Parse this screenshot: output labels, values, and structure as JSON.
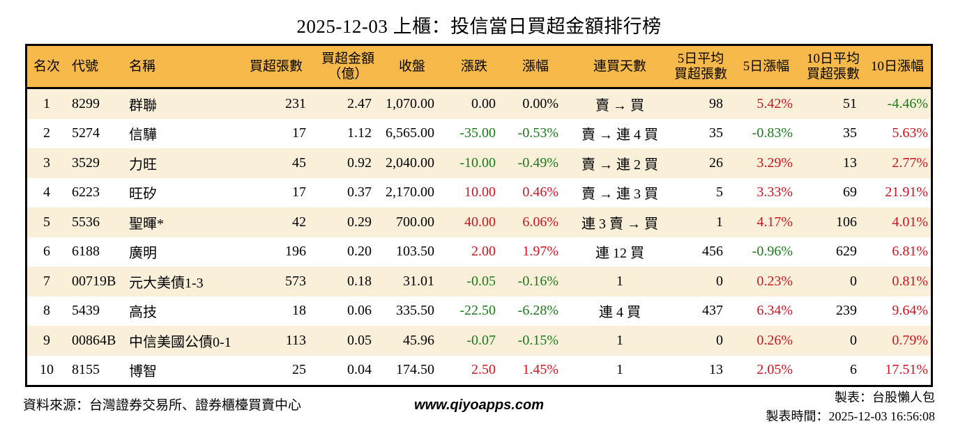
{
  "title": "2025-12-03 上櫃：投信當日買超金額排行榜",
  "colors": {
    "header_bg": "#f7ba4a",
    "stripe": "#faf0da",
    "border": "#000000",
    "up": "#d0121f",
    "down": "#1a7a1a",
    "flat": "#000000"
  },
  "table": {
    "headers": [
      "名次",
      "代號",
      "名稱",
      "買超張數",
      "買超金額\n（億）",
      "收盤",
      "漲跌",
      "漲幅",
      "連買天數",
      "5日平均\n買超張數",
      "5日漲幅",
      "10日平均\n買超張數",
      "10日漲幅"
    ],
    "rows": [
      [
        "1",
        "8299",
        "群聯",
        "231",
        "2.47",
        "1,070.00",
        "0.00",
        "0.00%",
        "賣 → 買",
        "98",
        "5.42%",
        "51",
        "-4.46%"
      ],
      [
        "2",
        "5274",
        "信驊",
        "17",
        "1.12",
        "6,565.00",
        "-35.00",
        "-0.53%",
        "賣 → 連 4 買",
        "35",
        "-0.83%",
        "35",
        "5.63%"
      ],
      [
        "3",
        "3529",
        "力旺",
        "45",
        "0.92",
        "2,040.00",
        "-10.00",
        "-0.49%",
        "賣 → 連 2 買",
        "26",
        "3.29%",
        "13",
        "2.77%"
      ],
      [
        "4",
        "6223",
        "旺矽",
        "17",
        "0.37",
        "2,170.00",
        "10.00",
        "0.46%",
        "賣 → 連 3 買",
        "5",
        "3.33%",
        "69",
        "21.91%"
      ],
      [
        "5",
        "5536",
        "聖暉*",
        "42",
        "0.29",
        "700.00",
        "40.00",
        "6.06%",
        "連 3 賣 → 買",
        "1",
        "4.17%",
        "106",
        "4.01%"
      ],
      [
        "6",
        "6188",
        "廣明",
        "196",
        "0.20",
        "103.50",
        "2.00",
        "1.97%",
        "連 12 買",
        "456",
        "-0.96%",
        "629",
        "6.81%"
      ],
      [
        "7",
        "00719B",
        "元大美債1-3",
        "573",
        "0.18",
        "31.01",
        "-0.05",
        "-0.16%",
        "1",
        "0",
        "0.23%",
        "0",
        "0.81%"
      ],
      [
        "8",
        "5439",
        "高技",
        "18",
        "0.06",
        "335.50",
        "-22.50",
        "-6.28%",
        "連 4 買",
        "437",
        "6.34%",
        "239",
        "9.64%"
      ],
      [
        "9",
        "00864B",
        "中信美國公債0-1",
        "113",
        "0.05",
        "45.96",
        "-0.07",
        "-0.15%",
        "1",
        "0",
        "0.26%",
        "0",
        "0.79%"
      ],
      [
        "10",
        "8155",
        "博智",
        "25",
        "0.04",
        "174.50",
        "2.50",
        "1.45%",
        "1",
        "13",
        "2.05%",
        "6",
        "17.51%"
      ]
    ],
    "sign_colored_columns": [
      6,
      7,
      10,
      12
    ]
  },
  "footer": {
    "source": "資料來源：台灣證券交易所、證券櫃檯買賣中心",
    "website": "www.qiyoapps.com",
    "made_by": "製表：台股懶人包",
    "made_time": "製表時間：2025-12-03 16:56:08"
  }
}
